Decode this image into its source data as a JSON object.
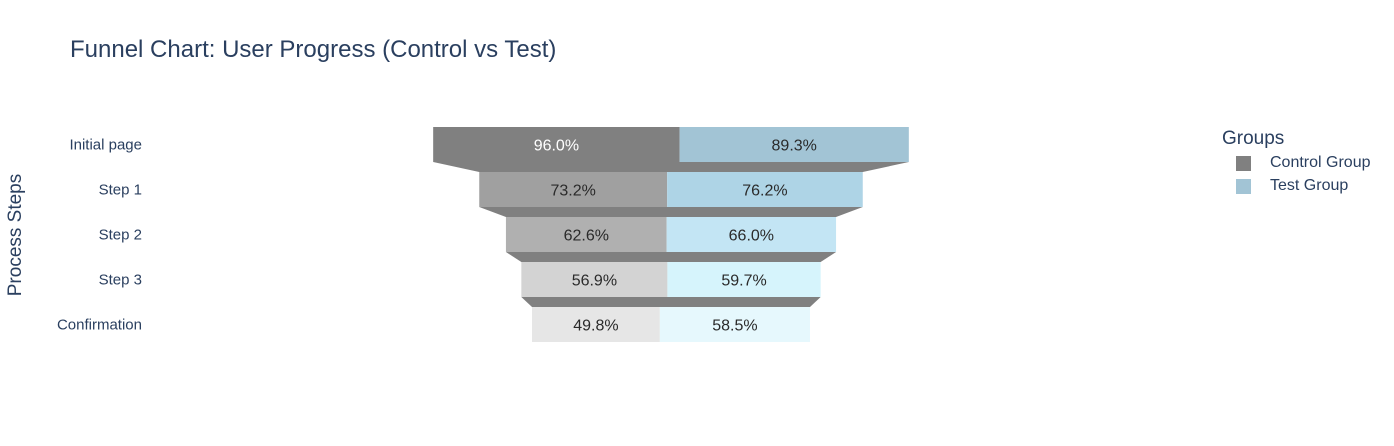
{
  "chart_data": {
    "type": "funnel",
    "title": "Funnel Chart: User Progress (Control vs Test)",
    "ylabel": "Process Steps",
    "legend_title": "Groups",
    "legend_position": "top-right",
    "categories": [
      "Initial page",
      "Step 1",
      "Step 2",
      "Step 3",
      "Confirmation"
    ],
    "series": [
      {
        "name": "Control Group",
        "values": [
          96.0,
          73.2,
          62.6,
          56.9,
          49.8
        ],
        "labels": [
          "96.0%",
          "73.2%",
          "62.6%",
          "56.9%",
          "49.8%"
        ],
        "colors": [
          "#808080",
          "#a0a0a0",
          "#b0b0b0",
          "#d3d3d3",
          "#e6e6e6"
        ],
        "legend_color": "#808080"
      },
      {
        "name": "Test Group",
        "values": [
          89.3,
          76.2,
          66.0,
          59.7,
          58.5
        ],
        "labels": [
          "89.3%",
          "76.2%",
          "66.0%",
          "59.7%",
          "58.5%"
        ],
        "colors": [
          "#a2c4d5",
          "#aed4e6",
          "#c3e5f4",
          "#d6f4fc",
          "#e6f8fd"
        ],
        "legend_color": "#a2c4d5"
      }
    ],
    "connector_color": "#808080",
    "grid": false
  }
}
